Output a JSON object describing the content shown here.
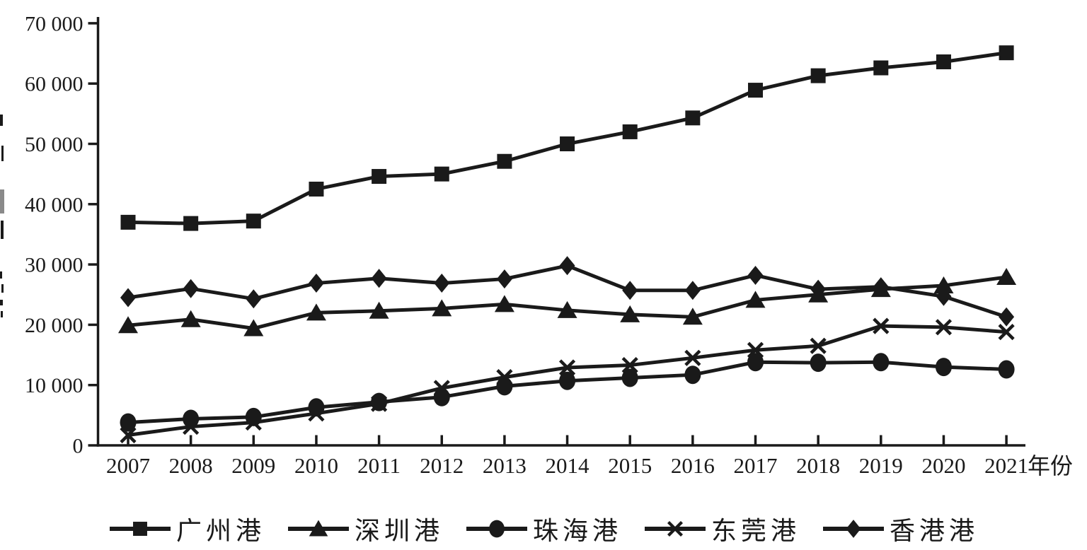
{
  "figure": {
    "background": "#ffffff",
    "ink": "#1a1a1a",
    "x_axis_unit_label": "年份"
  },
  "chart_data": {
    "type": "line",
    "title": "",
    "xlabel": "年份",
    "ylabel": "",
    "x": [
      "2007",
      "2008",
      "2009",
      "2010",
      "2011",
      "2012",
      "2013",
      "2014",
      "2015",
      "2016",
      "2017",
      "2018",
      "2019",
      "2020",
      "2021"
    ],
    "ylim": [
      0,
      70000
    ],
    "y_tick_interval": 10000,
    "y_tick_labels": [
      "0",
      "10 000",
      "20 000",
      "30 000",
      "40 000",
      "50 000",
      "60 000",
      "70 000"
    ],
    "grid": false,
    "legend_position": "bottom",
    "series": [
      {
        "name": "广州港",
        "key": "guangzhou",
        "marker": "square",
        "values": [
          37000,
          36800,
          37200,
          42500,
          44600,
          45000,
          47100,
          50000,
          52000,
          54300,
          58900,
          61300,
          62600,
          63600,
          65100
        ]
      },
      {
        "name": "深圳港",
        "key": "shenzhen",
        "marker": "triangle",
        "values": [
          19900,
          20900,
          19400,
          22000,
          22300,
          22700,
          23400,
          22400,
          21700,
          21300,
          24100,
          25000,
          25900,
          26500,
          27900
        ]
      },
      {
        "name": "珠海港",
        "key": "zhuhai",
        "marker": "circle",
        "values": [
          3800,
          4400,
          4700,
          6300,
          7200,
          8000,
          9800,
          10700,
          11200,
          11700,
          13800,
          13700,
          13800,
          13000,
          12600
        ]
      },
      {
        "name": "东莞港",
        "key": "dongguan",
        "marker": "x",
        "values": [
          1700,
          3100,
          3800,
          5300,
          6900,
          9500,
          11300,
          12900,
          13300,
          14500,
          15800,
          16500,
          19800,
          19600,
          18800
        ]
      },
      {
        "name": "香港港",
        "key": "hongkong",
        "marker": "diamond",
        "values": [
          24500,
          26000,
          24300,
          26900,
          27700,
          26900,
          27600,
          29800,
          25700,
          25700,
          28200,
          25900,
          26300,
          24700,
          21300
        ]
      }
    ]
  }
}
